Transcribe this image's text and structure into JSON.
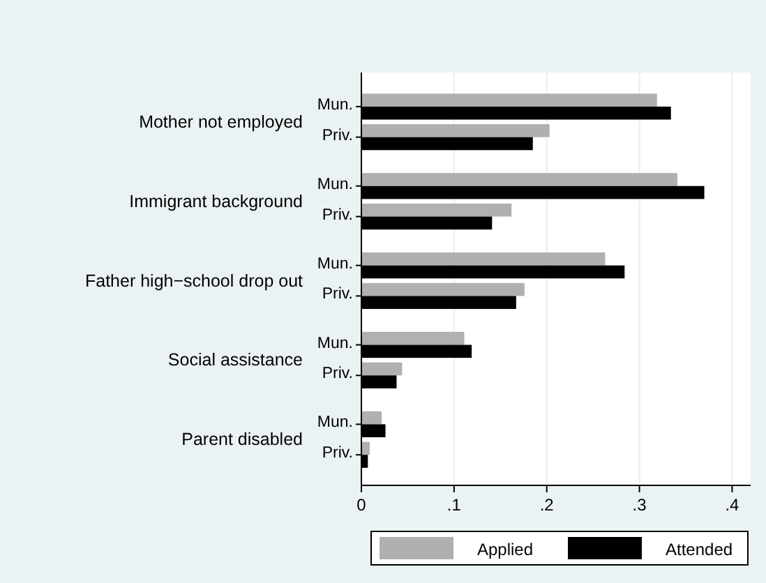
{
  "chart_data": {
    "type": "bar",
    "orientation": "horizontal",
    "categories": [
      "Mun.",
      "Priv.",
      "Mun.",
      "Priv.",
      "Mun.",
      "Priv.",
      "Mun.",
      "Priv.",
      "Mun.",
      "Priv."
    ],
    "annotations": [
      "Mother not employed",
      "Immigrant background",
      "Father high−school drop out",
      "Social assistance",
      "Parent disabled"
    ],
    "series": [
      {
        "name": "Applied",
        "color": "#b0b0b0",
        "values": [
          0.319,
          0.203,
          0.341,
          0.162,
          0.263,
          0.176,
          0.111,
          0.044,
          0.022,
          0.009
        ]
      },
      {
        "name": "Attended",
        "color": "#000000",
        "values": [
          0.334,
          0.185,
          0.37,
          0.141,
          0.284,
          0.167,
          0.119,
          0.038,
          0.026,
          0.007
        ]
      }
    ],
    "xlim": [
      0,
      0.42
    ],
    "xticks": [
      {
        "value": 0,
        "label": "0"
      },
      {
        "value": 0.1,
        "label": ".1"
      },
      {
        "value": 0.2,
        "label": ".2"
      },
      {
        "value": 0.3,
        "label": ".3"
      },
      {
        "value": 0.4,
        "label": ".4"
      }
    ],
    "grid": "x",
    "legend": "bottom"
  }
}
